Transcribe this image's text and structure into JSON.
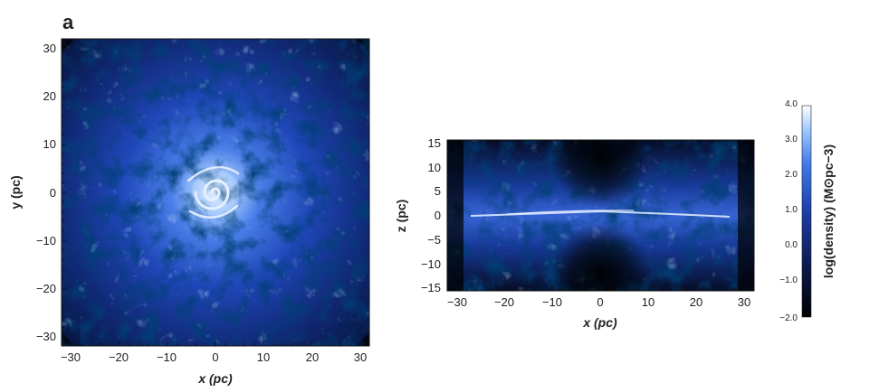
{
  "panel_label": "a",
  "face_on": {
    "x_ticks": [
      "−30",
      "−20",
      "−10",
      "0",
      "10",
      "20",
      "30"
    ],
    "y_ticks": [
      "30",
      "20",
      "10",
      "0",
      "−10",
      "−20",
      "−30"
    ],
    "xlabel": "x (pc)",
    "ylabel": "y (pc)"
  },
  "edge_on": {
    "x_ticks": [
      "−30",
      "−20",
      "−10",
      "0",
      "10",
      "20",
      "30"
    ],
    "z_ticks": [
      "15",
      "10",
      "5",
      "0",
      "−5",
      "−10",
      "−15"
    ],
    "xlabel": "x (pc)",
    "ylabel": "z (pc)"
  },
  "colorbar": {
    "ticks": [
      "4.0",
      "3.0",
      "2.0",
      "1.0",
      "0.0",
      "−1.0",
      "−2.0"
    ],
    "label": "log(density) (M⊙pc−3)",
    "colors": {
      "low": "#000000",
      "mid": "#1b3fa8",
      "high": "#ffffff"
    }
  }
}
